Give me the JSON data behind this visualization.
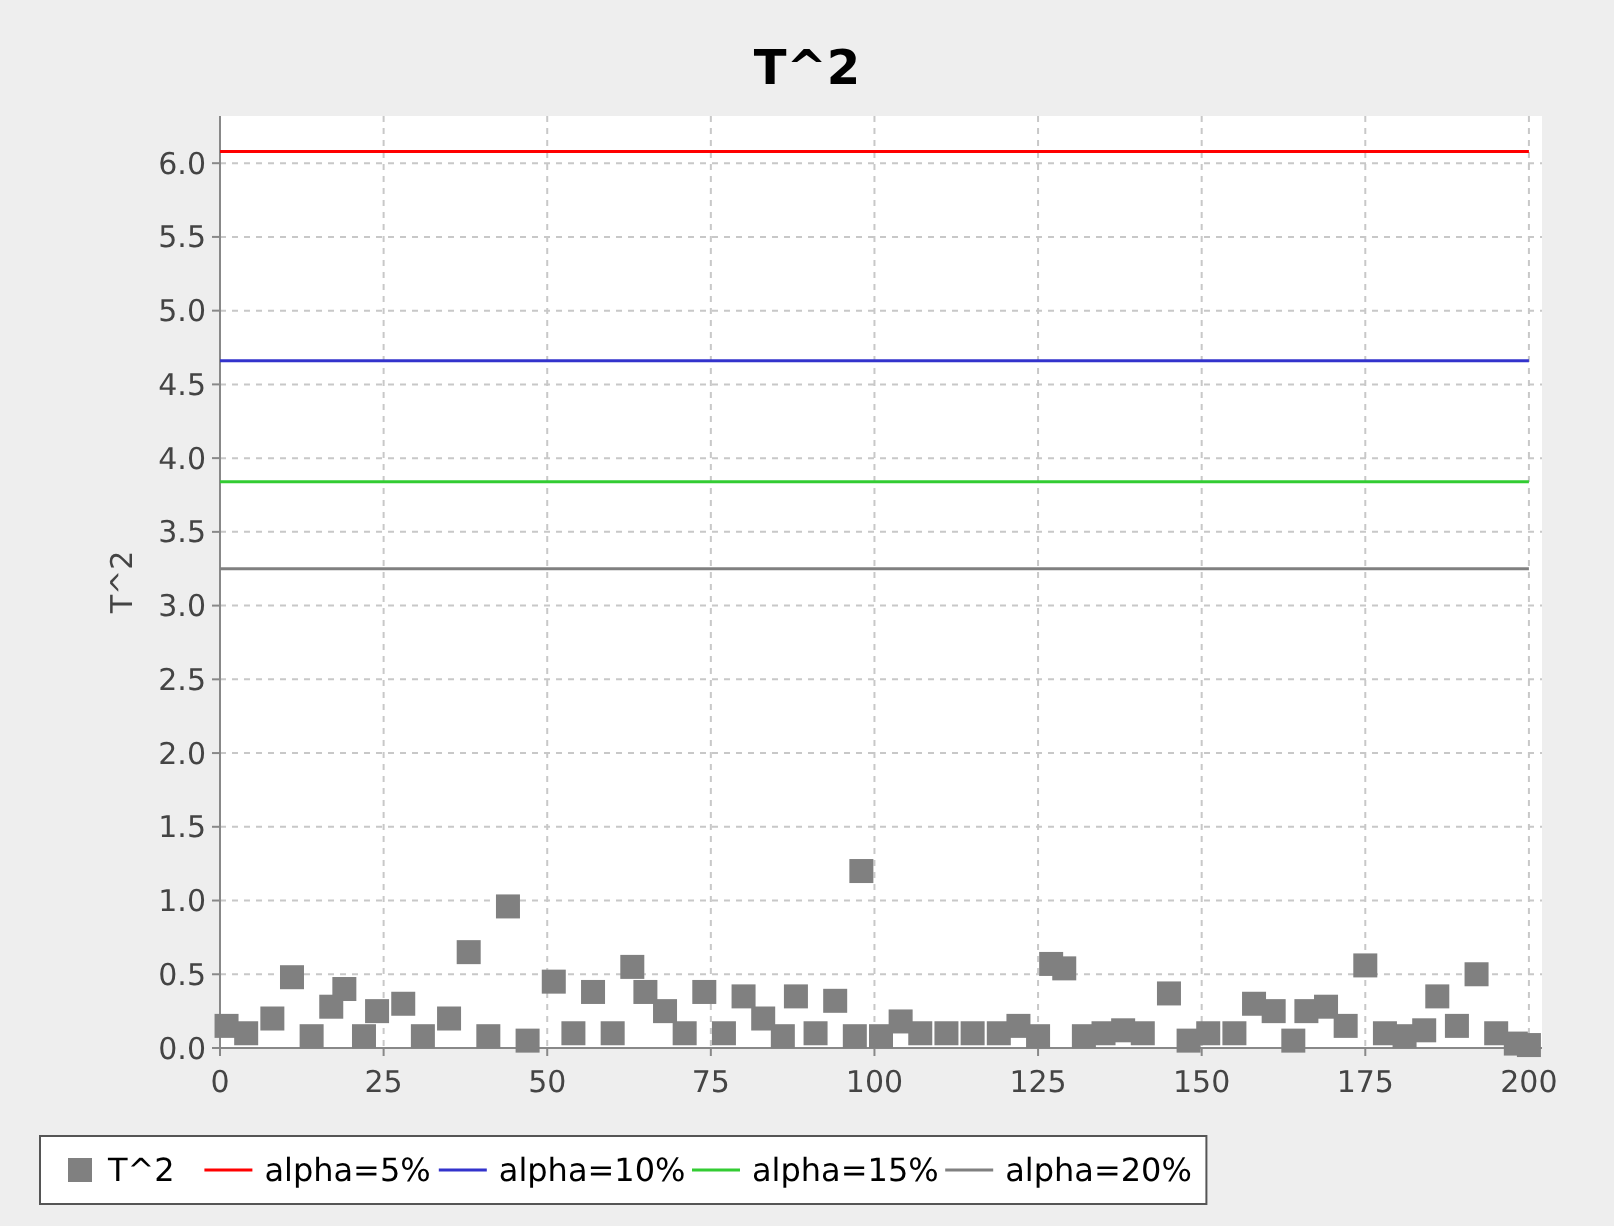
{
  "chart_data": {
    "type": "scatter",
    "title": "T^2",
    "ylabel": "T^2",
    "xlim": [
      0,
      202
    ],
    "ylim": [
      0,
      6.32
    ],
    "xticks": [
      0,
      25,
      50,
      75,
      100,
      125,
      150,
      175,
      200
    ],
    "yticks": [
      {
        "value": 0,
        "label": "0.0"
      },
      0.5,
      {
        "value": 1,
        "label": "1.0"
      },
      1.5,
      {
        "value": 2,
        "label": "2.0"
      },
      2.5,
      {
        "value": 3,
        "label": "3.0"
      },
      3.5,
      {
        "value": 4,
        "label": "4.0"
      },
      4.5,
      {
        "value": 5,
        "label": "5.0"
      },
      5.5,
      {
        "value": 6,
        "label": "6.0"
      }
    ],
    "grid": true,
    "legend": "bottom",
    "marker": "square",
    "series": [
      {
        "name": "T^2",
        "color": "#808080",
        "x": [
          1,
          4,
          8,
          11,
          14,
          17,
          19,
          22,
          24,
          28,
          31,
          35,
          38,
          41,
          44,
          47,
          51,
          54,
          57,
          60,
          63,
          65,
          68,
          71,
          74,
          77,
          80,
          83,
          86,
          88,
          91,
          94,
          97,
          98,
          101,
          104,
          107,
          111,
          115,
          119,
          122,
          125,
          127,
          129,
          132,
          135,
          138,
          141,
          145,
          148,
          151,
          155,
          158,
          161,
          164,
          166,
          169,
          172,
          175,
          178,
          181,
          184,
          186,
          189,
          192,
          195,
          198,
          200
        ],
        "values": [
          0.15,
          0.1,
          0.2,
          0.48,
          0.08,
          0.28,
          0.4,
          0.08,
          0.25,
          0.3,
          0.08,
          0.2,
          0.65,
          0.08,
          0.96,
          0.05,
          0.45,
          0.1,
          0.38,
          0.1,
          0.55,
          0.38,
          0.25,
          0.1,
          0.38,
          0.1,
          0.35,
          0.2,
          0.08,
          0.35,
          0.1,
          0.32,
          0.08,
          1.2,
          0.08,
          0.18,
          0.1,
          0.1,
          0.1,
          0.1,
          0.15,
          0.08,
          0.57,
          0.54,
          0.08,
          0.1,
          0.12,
          0.1,
          0.37,
          0.05,
          0.1,
          0.1,
          0.3,
          0.25,
          0.05,
          0.25,
          0.28,
          0.15,
          0.56,
          0.1,
          0.08,
          0.12,
          0.35,
          0.15,
          0.5,
          0.1,
          0.03,
          0.02
        ]
      },
      {
        "name": "alpha=5%",
        "type": "line",
        "marker": "none",
        "color": "#ff0000",
        "x": [
          0,
          200
        ],
        "values": [
          6.08,
          6.08
        ]
      },
      {
        "name": "alpha=10%",
        "type": "line",
        "marker": "none",
        "color": "#3333cc",
        "x": [
          0,
          200
        ],
        "values": [
          4.66,
          4.66
        ]
      },
      {
        "name": "alpha=15%",
        "type": "line",
        "marker": "none",
        "color": "#33cc33",
        "x": [
          0,
          200
        ],
        "values": [
          3.84,
          3.84
        ]
      },
      {
        "name": "alpha=20%",
        "type": "line",
        "marker": "none",
        "color": "#808080",
        "x": [
          0,
          200
        ],
        "values": [
          3.25,
          3.25
        ]
      }
    ]
  }
}
